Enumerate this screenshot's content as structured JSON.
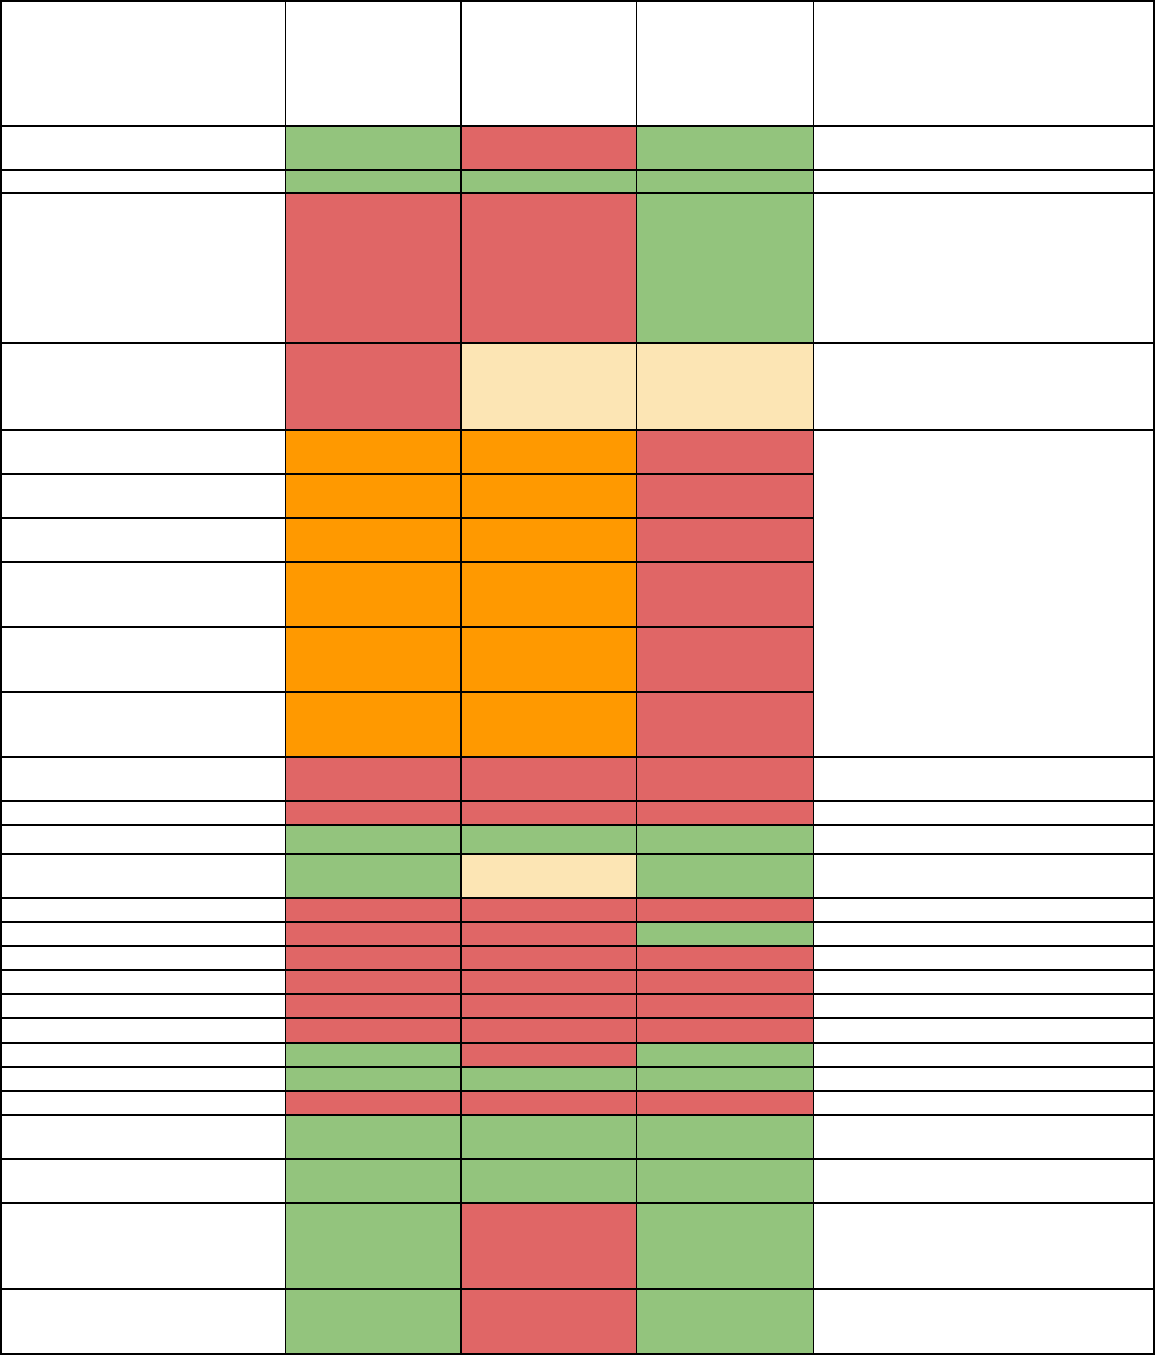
{
  "table": {
    "colors": {
      "G": "#93c47d",
      "R": "#e06666",
      "O": "#ff9900",
      "Y": "#fce5b4",
      "W": "#ffffff"
    },
    "rows": [
      [
        "W",
        "W",
        "W",
        "W",
        "W"
      ],
      [
        "W",
        "G",
        "R",
        "G",
        "W"
      ],
      [
        "W",
        "G",
        "G",
        "G",
        "W"
      ],
      [
        "W",
        "R",
        "R",
        "G",
        "W"
      ],
      [
        "W",
        "R",
        "Y",
        "Y",
        "W"
      ],
      [
        "W",
        "O",
        "O",
        "R",
        "W"
      ],
      [
        "W",
        "O",
        "O",
        "R",
        ""
      ],
      [
        "W",
        "O",
        "O",
        "R",
        ""
      ],
      [
        "W",
        "O",
        "O",
        "R",
        ""
      ],
      [
        "W",
        "O",
        "O",
        "R",
        ""
      ],
      [
        "W",
        "O",
        "O",
        "R",
        ""
      ],
      [
        "W",
        "R",
        "R",
        "R",
        "W"
      ],
      [
        "W",
        "R",
        "R",
        "R",
        "W"
      ],
      [
        "W",
        "G",
        "G",
        "G",
        "W"
      ],
      [
        "W",
        "G",
        "Y",
        "G",
        "W"
      ],
      [
        "W",
        "R",
        "R",
        "R",
        "W"
      ],
      [
        "W",
        "R",
        "R",
        "G",
        "W"
      ],
      [
        "W",
        "R",
        "R",
        "R",
        "W"
      ],
      [
        "W",
        "R",
        "R",
        "R",
        "W"
      ],
      [
        "W",
        "R",
        "R",
        "R",
        "W"
      ],
      [
        "W",
        "R",
        "R",
        "R",
        "W"
      ],
      [
        "W",
        "G",
        "R",
        "G",
        "W"
      ],
      [
        "W",
        "G",
        "G",
        "G",
        "W"
      ],
      [
        "W",
        "R",
        "R",
        "R",
        "W"
      ],
      [
        "W",
        "G",
        "G",
        "G",
        "W"
      ],
      [
        "W",
        "G",
        "G",
        "G",
        "W"
      ],
      [
        "W",
        "G",
        "R",
        "G",
        "W"
      ],
      [
        "W",
        "G",
        "R",
        "G",
        "W"
      ]
    ],
    "merged": [
      {
        "col": 4,
        "first_row": 5,
        "last_row": 10,
        "status": "W"
      }
    ]
  }
}
